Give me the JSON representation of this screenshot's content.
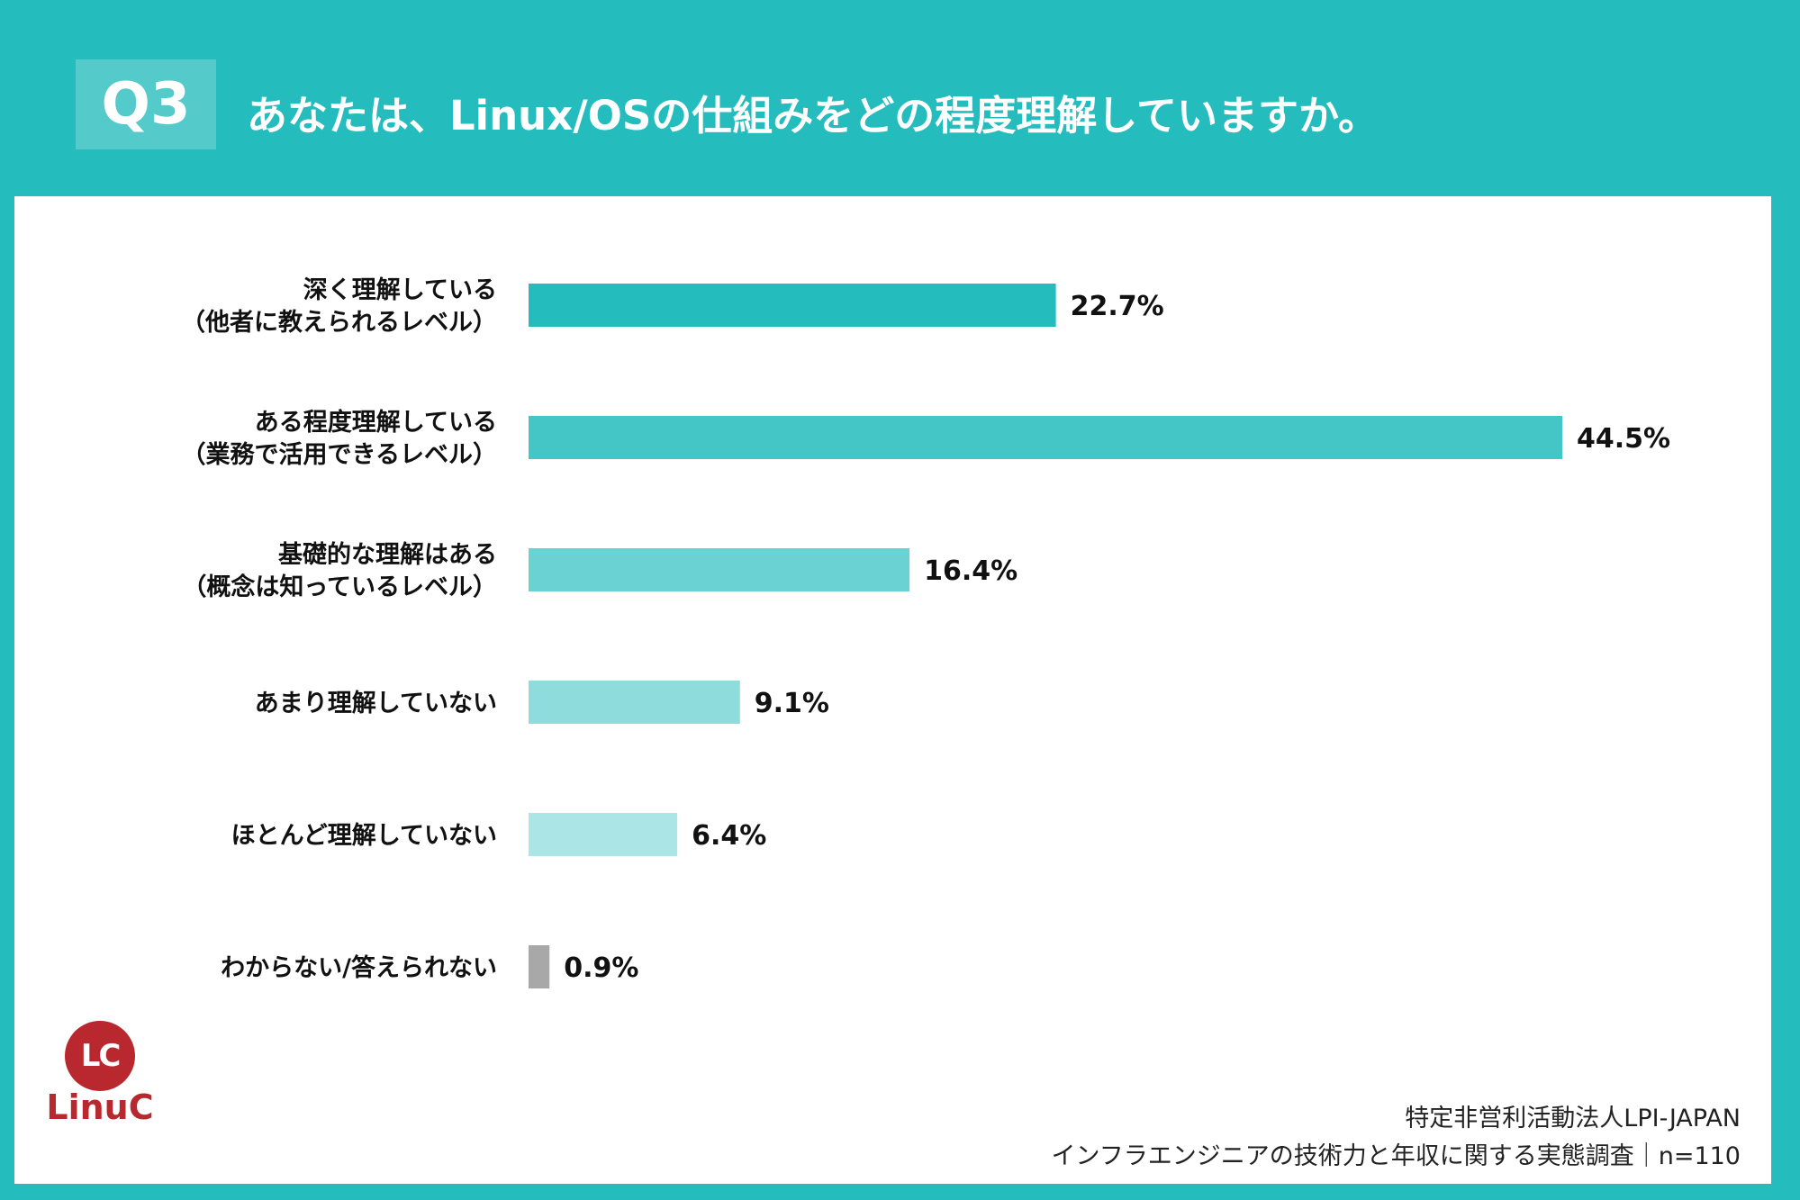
{
  "header": {
    "badge": "Q3",
    "question": "あなたは、Linux/OSの仕組みをどの程度理解していますか。"
  },
  "chart_data": {
    "type": "bar",
    "orientation": "horizontal",
    "unit": "%",
    "categories": [
      [
        "深く理解している",
        "（他者に教えられるレベル）"
      ],
      [
        "ある程度理解している",
        "（業務で活用できるレベル）"
      ],
      [
        "基礎的な理解はある",
        "（概念は知っているレベル）"
      ],
      [
        "あまり理解していない"
      ],
      [
        "ほとんど理解していない"
      ],
      [
        "わからない/答えられない"
      ]
    ],
    "values": [
      22.7,
      44.5,
      16.4,
      9.1,
      6.4,
      0.9
    ],
    "value_labels": [
      "22.7%",
      "44.5%",
      "16.4%",
      "9.1%",
      "6.4%",
      "0.9%"
    ],
    "colors": [
      "#25bcbd",
      "#45c6c6",
      "#6ad2d2",
      "#8edcdc",
      "#ace5e5",
      "#a8a8a8"
    ],
    "xlim": [
      0,
      44.5
    ]
  },
  "logo": {
    "mark": "LC",
    "text": "LinuC"
  },
  "source": {
    "line1": "特定非営利活動法人LPI-JAPAN",
    "line2": "インフラエンジニアの技術力と年収に関する実態調査｜n=110"
  }
}
